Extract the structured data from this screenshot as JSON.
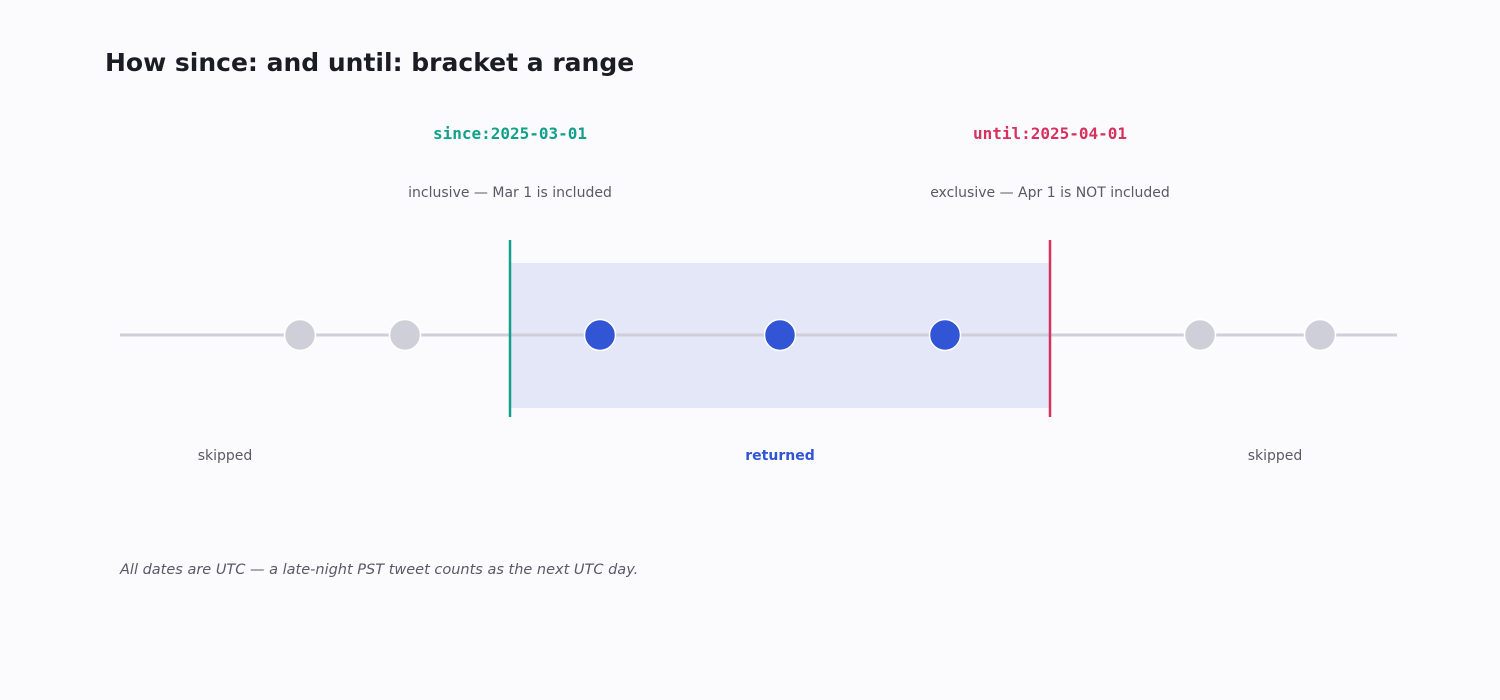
{
  "title": "How since: and until: bracket a range",
  "since": {
    "label": "since:2025-03-01",
    "note": "inclusive — Mar 1 is included",
    "color": "#12a08b"
  },
  "until": {
    "label": "until:2025-04-01",
    "note": "exclusive — Apr 1 is NOT included",
    "color": "#d6325f"
  },
  "regions": {
    "before": "skipped",
    "inside": "returned",
    "after": "skipped"
  },
  "tweets": [
    {
      "status": "skipped"
    },
    {
      "status": "skipped"
    },
    {
      "status": "returned"
    },
    {
      "status": "returned"
    },
    {
      "status": "returned"
    },
    {
      "status": "skipped"
    },
    {
      "status": "skipped"
    }
  ],
  "colors": {
    "returned": "#3155d4",
    "skipped": "#cfcfd9",
    "range_fill": "#e3e7f7",
    "timeline": "#cfcfd9"
  },
  "footnote": "All dates are UTC — a late-night PST tweet counts as the next UTC day."
}
